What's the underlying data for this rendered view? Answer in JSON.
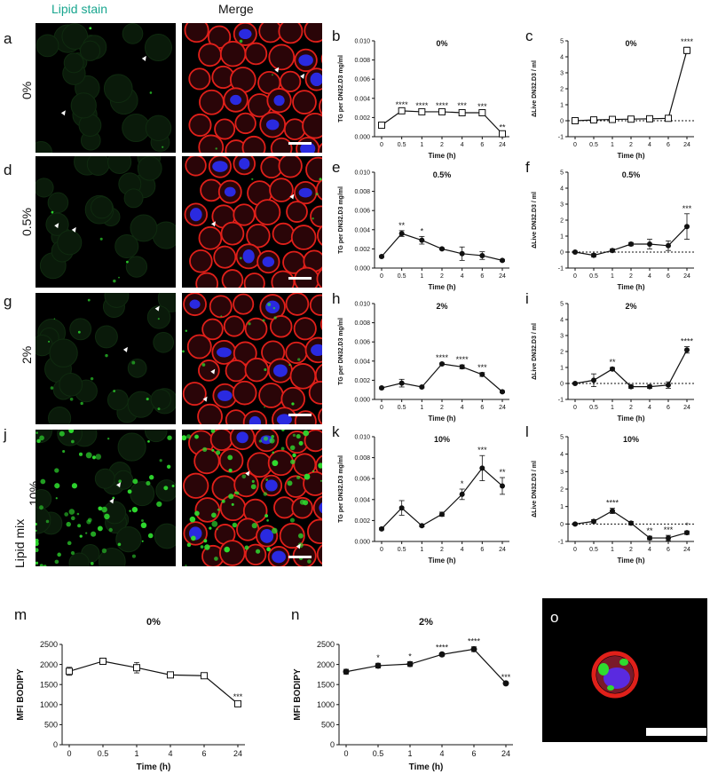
{
  "colors": {
    "lipid_label": "#19a68f",
    "membrane": "#e0201a",
    "nucleus": "#2a2ae0",
    "lipid": "#2fdc2f",
    "line": "#111111",
    "dotted_zero": "#111111"
  },
  "headers": {
    "lipid_stain": "Lipid stain",
    "merge": "Merge"
  },
  "rows": [
    {
      "panel": "a",
      "label": "0%"
    },
    {
      "panel": "d",
      "label": "0.5%"
    },
    {
      "panel": "g",
      "label": "2%"
    },
    {
      "panel": "j",
      "label": "10%",
      "extra_label": "Lipid mix"
    }
  ],
  "panel_o": "o",
  "chart_data": [
    {
      "panel": "b",
      "type": "line",
      "title": "0%",
      "xlabel": "Time (h)",
      "ylabel": "TG per DN32.D3 mg/ml",
      "categories": [
        "0",
        "0.5",
        "1",
        "2",
        "4",
        "6",
        "24"
      ],
      "marker": "square",
      "values": [
        0.0012,
        0.0027,
        0.0026,
        0.0026,
        0.0025,
        0.0025,
        0.0003
      ],
      "errors": [
        0.0001,
        0.0001,
        0.0001,
        0.0001,
        0.0002,
        0.0001,
        0.0001
      ],
      "significance": [
        "",
        "****",
        "****",
        "****",
        "***",
        "***",
        "**"
      ],
      "ylim": [
        0,
        0.01
      ],
      "yticks": [
        "0.000",
        "0.002",
        "0.004",
        "0.006",
        "0.008",
        "0.010"
      ],
      "tickvals": [
        0,
        0.002,
        0.004,
        0.006,
        0.008,
        0.01
      ]
    },
    {
      "panel": "c",
      "type": "line",
      "title": "0%",
      "xlabel": "Time (h)",
      "ylabel": "ΔLive DN32.D3 / ml",
      "categories": [
        "0",
        "0.5",
        "1",
        "2",
        "4",
        "6",
        "24"
      ],
      "marker": "square",
      "values": [
        0,
        0.05,
        0.08,
        0.1,
        0.12,
        0.15,
        4.4
      ],
      "errors": [
        0.05,
        0.1,
        0.1,
        0.1,
        0.15,
        0.1,
        0.2
      ],
      "significance": [
        "",
        "",
        "",
        "",
        "",
        "",
        "****"
      ],
      "ylim": [
        -1,
        5
      ],
      "yticks": [
        "-1",
        "0",
        "1",
        "2",
        "3",
        "4",
        "5"
      ],
      "tickvals": [
        -1,
        0,
        1,
        2,
        3,
        4,
        5
      ],
      "zero_line": true
    },
    {
      "panel": "e",
      "type": "line",
      "title": "0.5%",
      "xlabel": "Time (h)",
      "ylabel": "TG per DN32.D3 mg/ml",
      "categories": [
        "0",
        "0.5",
        "1",
        "2",
        "4",
        "6",
        "24"
      ],
      "marker": "dot",
      "values": [
        0.0012,
        0.0036,
        0.0029,
        0.002,
        0.0015,
        0.0013,
        0.0008
      ],
      "errors": [
        0.0001,
        0.0003,
        0.0004,
        0.0001,
        0.0007,
        0.0004,
        0.0001
      ],
      "significance": [
        "",
        "**",
        "*",
        "",
        "",
        "",
        ""
      ],
      "ylim": [
        0,
        0.01
      ],
      "yticks": [
        "0.000",
        "0.002",
        "0.004",
        "0.006",
        "0.008",
        "0.010"
      ],
      "tickvals": [
        0,
        0.002,
        0.004,
        0.006,
        0.008,
        0.01
      ]
    },
    {
      "panel": "f",
      "type": "line",
      "title": "0.5%",
      "xlabel": "Time (h)",
      "ylabel": "ΔLive DN32.D3 / ml",
      "categories": [
        "0",
        "0.5",
        "1",
        "2",
        "4",
        "6",
        "24"
      ],
      "marker": "dot",
      "values": [
        0,
        -0.2,
        0.1,
        0.5,
        0.5,
        0.4,
        1.6
      ],
      "errors": [
        0.05,
        0.1,
        0.1,
        0.1,
        0.3,
        0.3,
        0.8
      ],
      "significance": [
        "",
        "",
        "",
        "",
        "",
        "",
        "***"
      ],
      "ylim": [
        -1,
        5
      ],
      "yticks": [
        "-1",
        "0",
        "1",
        "2",
        "3",
        "4",
        "5"
      ],
      "tickvals": [
        -1,
        0,
        1,
        2,
        3,
        4,
        5
      ],
      "zero_line": true
    },
    {
      "panel": "h",
      "type": "line",
      "title": "2%",
      "xlabel": "Time (h)",
      "ylabel": "TG per DN32.D3 mg/ml",
      "categories": [
        "0",
        "0.5",
        "1",
        "2",
        "4",
        "6",
        "24"
      ],
      "marker": "dot",
      "values": [
        0.0012,
        0.0017,
        0.0013,
        0.0037,
        0.0034,
        0.0026,
        0.0008
      ],
      "errors": [
        0.0001,
        0.0004,
        0.0001,
        0.0001,
        0.0002,
        0.0002,
        0.0001
      ],
      "significance": [
        "",
        "",
        "",
        "****",
        "****",
        "***",
        ""
      ],
      "ylim": [
        0,
        0.01
      ],
      "yticks": [
        "0.000",
        "0.002",
        "0.004",
        "0.006",
        "0.008",
        "0.010"
      ],
      "tickvals": [
        0,
        0.002,
        0.004,
        0.006,
        0.008,
        0.01
      ]
    },
    {
      "panel": "i",
      "type": "line",
      "title": "2%",
      "xlabel": "Time (h)",
      "ylabel": "ΔLive DN32.D3 / ml",
      "categories": [
        "0",
        "0.5",
        "1",
        "2",
        "4",
        "6",
        "24"
      ],
      "marker": "dot",
      "values": [
        0,
        0.2,
        0.9,
        -0.2,
        -0.2,
        -0.1,
        2.1
      ],
      "errors": [
        0.05,
        0.4,
        0.1,
        0.1,
        0.1,
        0.2,
        0.2
      ],
      "significance": [
        "",
        "",
        "**",
        "",
        "",
        "",
        "****"
      ],
      "ylim": [
        -1,
        5
      ],
      "yticks": [
        "-1",
        "0",
        "1",
        "2",
        "3",
        "4",
        "5"
      ],
      "tickvals": [
        -1,
        0,
        1,
        2,
        3,
        4,
        5
      ],
      "zero_line": true
    },
    {
      "panel": "k",
      "type": "line",
      "title": "10%",
      "xlabel": "Time (h)",
      "ylabel": "TG per DN32.D3 mg/ml",
      "categories": [
        "0",
        "0.5",
        "1",
        "2",
        "4",
        "6",
        "24"
      ],
      "marker": "dot",
      "values": [
        0.0012,
        0.0032,
        0.0015,
        0.0026,
        0.0045,
        0.007,
        0.0053
      ],
      "errors": [
        0.0001,
        0.0007,
        0.0001,
        0.0002,
        0.0005,
        0.0012,
        0.0008
      ],
      "significance": [
        "",
        "",
        "",
        "",
        "*",
        "***",
        "**"
      ],
      "ylim": [
        0,
        0.01
      ],
      "yticks": [
        "0.000",
        "0.002",
        "0.004",
        "0.006",
        "0.008",
        "0.010"
      ],
      "tickvals": [
        0,
        0.002,
        0.004,
        0.006,
        0.008,
        0.01
      ]
    },
    {
      "panel": "l",
      "type": "line",
      "title": "10%",
      "xlabel": "Time (h)",
      "ylabel": "ΔLive DN32.D3 / ml",
      "categories": [
        "0",
        "0.5",
        "1",
        "2",
        "4",
        "6",
        "24"
      ],
      "marker": "dot",
      "values": [
        0,
        0.15,
        0.75,
        0.05,
        -0.8,
        -0.8,
        -0.5
      ],
      "errors": [
        0.05,
        0.1,
        0.15,
        0.1,
        0.1,
        0.15,
        0.1
      ],
      "significance": [
        "",
        "",
        "****",
        "",
        "**",
        "***",
        "*"
      ],
      "ylim": [
        -1,
        5
      ],
      "yticks": [
        "-1",
        "0",
        "1",
        "2",
        "3",
        "4",
        "5"
      ],
      "tickvals": [
        -1,
        0,
        1,
        2,
        3,
        4,
        5
      ],
      "zero_line": true
    },
    {
      "panel": "m",
      "type": "line",
      "title": "0%",
      "xlabel": "Time (h)",
      "ylabel": "MFI BODIPY",
      "categories": [
        "0",
        "0.5",
        "1",
        "4",
        "6",
        "24"
      ],
      "marker": "square",
      "values": [
        1830,
        2080,
        1920,
        1740,
        1720,
        1020
      ],
      "errors": [
        100,
        50,
        130,
        20,
        30,
        40
      ],
      "significance": [
        "",
        "",
        "",
        "",
        "",
        "***"
      ],
      "ylim": [
        0,
        2500
      ],
      "yticks": [
        "0",
        "500",
        "1000",
        "1500",
        "2000",
        "2500"
      ],
      "tickvals": [
        0,
        500,
        1000,
        1500,
        2000,
        2500
      ]
    },
    {
      "panel": "n",
      "type": "line",
      "title": "2%",
      "xlabel": "Time (h)",
      "ylabel": "MFI BODIPY",
      "categories": [
        "0",
        "0.5",
        "1",
        "4",
        "6",
        "24"
      ],
      "marker": "dot",
      "values": [
        1820,
        1970,
        2010,
        2250,
        2380,
        1530
      ],
      "errors": [
        60,
        60,
        60,
        40,
        60,
        20
      ],
      "significance": [
        "",
        "*",
        "*",
        "****",
        "****",
        "***"
      ],
      "ylim": [
        0,
        2500
      ],
      "yticks": [
        "0",
        "500",
        "1000",
        "1500",
        "2000",
        "2500"
      ],
      "tickvals": [
        0,
        500,
        1000,
        1500,
        2000,
        2500
      ]
    }
  ]
}
